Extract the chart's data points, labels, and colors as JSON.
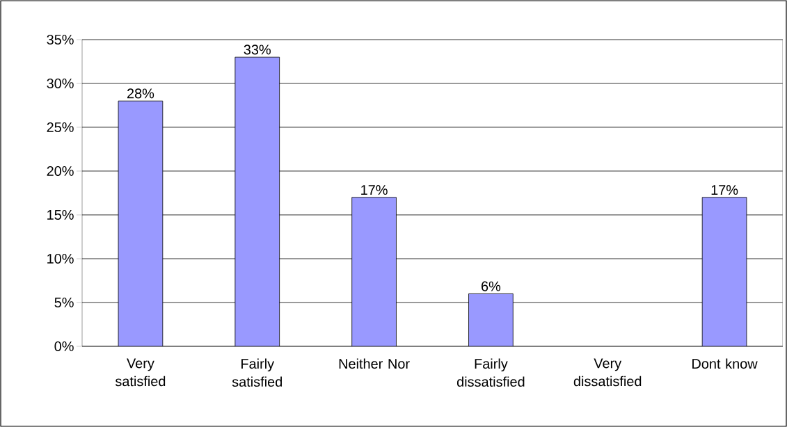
{
  "chart_data": {
    "type": "bar",
    "categories": [
      "Very satisfied",
      "Fairly satisfied",
      "Neither Nor",
      "Fairly dissatisfied",
      "Very dissatisfied",
      "Dont know"
    ],
    "values": [
      28,
      33,
      17,
      6,
      null,
      17
    ],
    "value_labels": [
      "28%",
      "33%",
      "17%",
      "6%",
      null,
      "17%"
    ],
    "color": "#9999ff",
    "ylim": [
      0,
      35
    ],
    "yticks": [
      {
        "value": 0,
        "label": "0%"
      },
      {
        "value": 5,
        "label": "5%"
      },
      {
        "value": 10,
        "label": "10%"
      },
      {
        "value": 15,
        "label": "15%"
      },
      {
        "value": 20,
        "label": "20%"
      },
      {
        "value": 25,
        "label": "25%"
      },
      {
        "value": 30,
        "label": "30%"
      },
      {
        "value": 35,
        "label": "35%"
      }
    ],
    "grid": "y"
  }
}
